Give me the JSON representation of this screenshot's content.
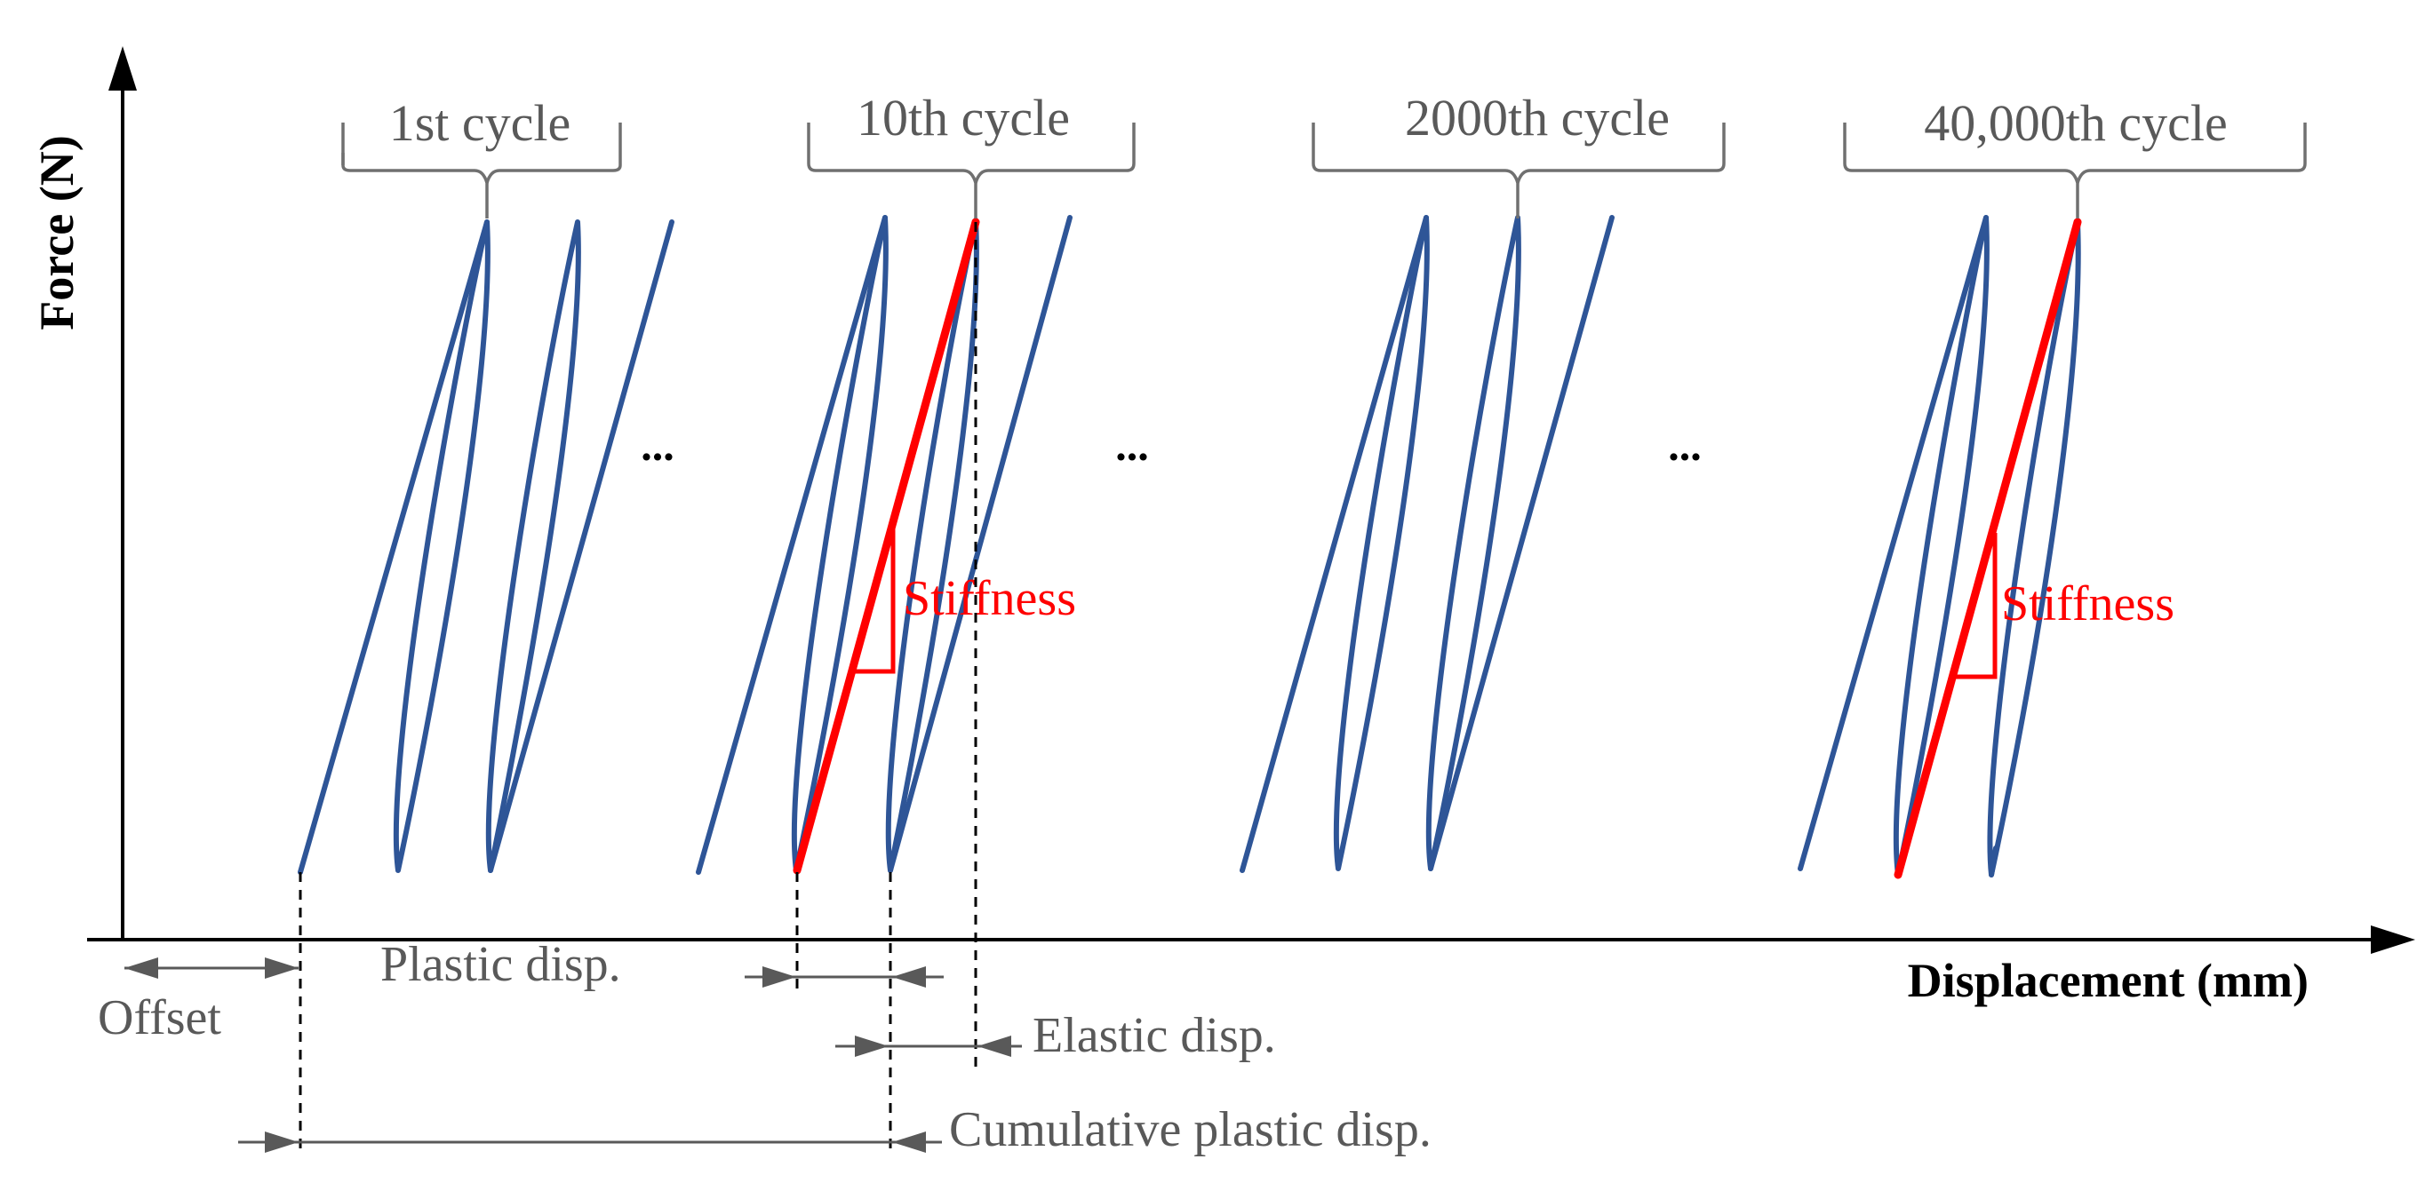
{
  "axes": {
    "y_label": "Force (N)",
    "x_label": "Displacement (mm)"
  },
  "cycles": [
    {
      "label": "1st cycle"
    },
    {
      "label": "10th cycle"
    },
    {
      "label": "2000th cycle"
    },
    {
      "label": "40,000th cycle"
    }
  ],
  "ellipsis": "...",
  "annotations": {
    "stiffness_1": "Stiffness",
    "stiffness_2": "Stiffness",
    "offset": "Offset",
    "plastic_disp": "Plastic disp.",
    "elastic_disp": "Elastic disp.",
    "cumulative_plastic_disp": "Cumulative plastic disp."
  },
  "colors": {
    "loop": "#2e5597",
    "stiffness": "#ff0000",
    "annotation_text": "#595959",
    "axis": "#000000"
  }
}
